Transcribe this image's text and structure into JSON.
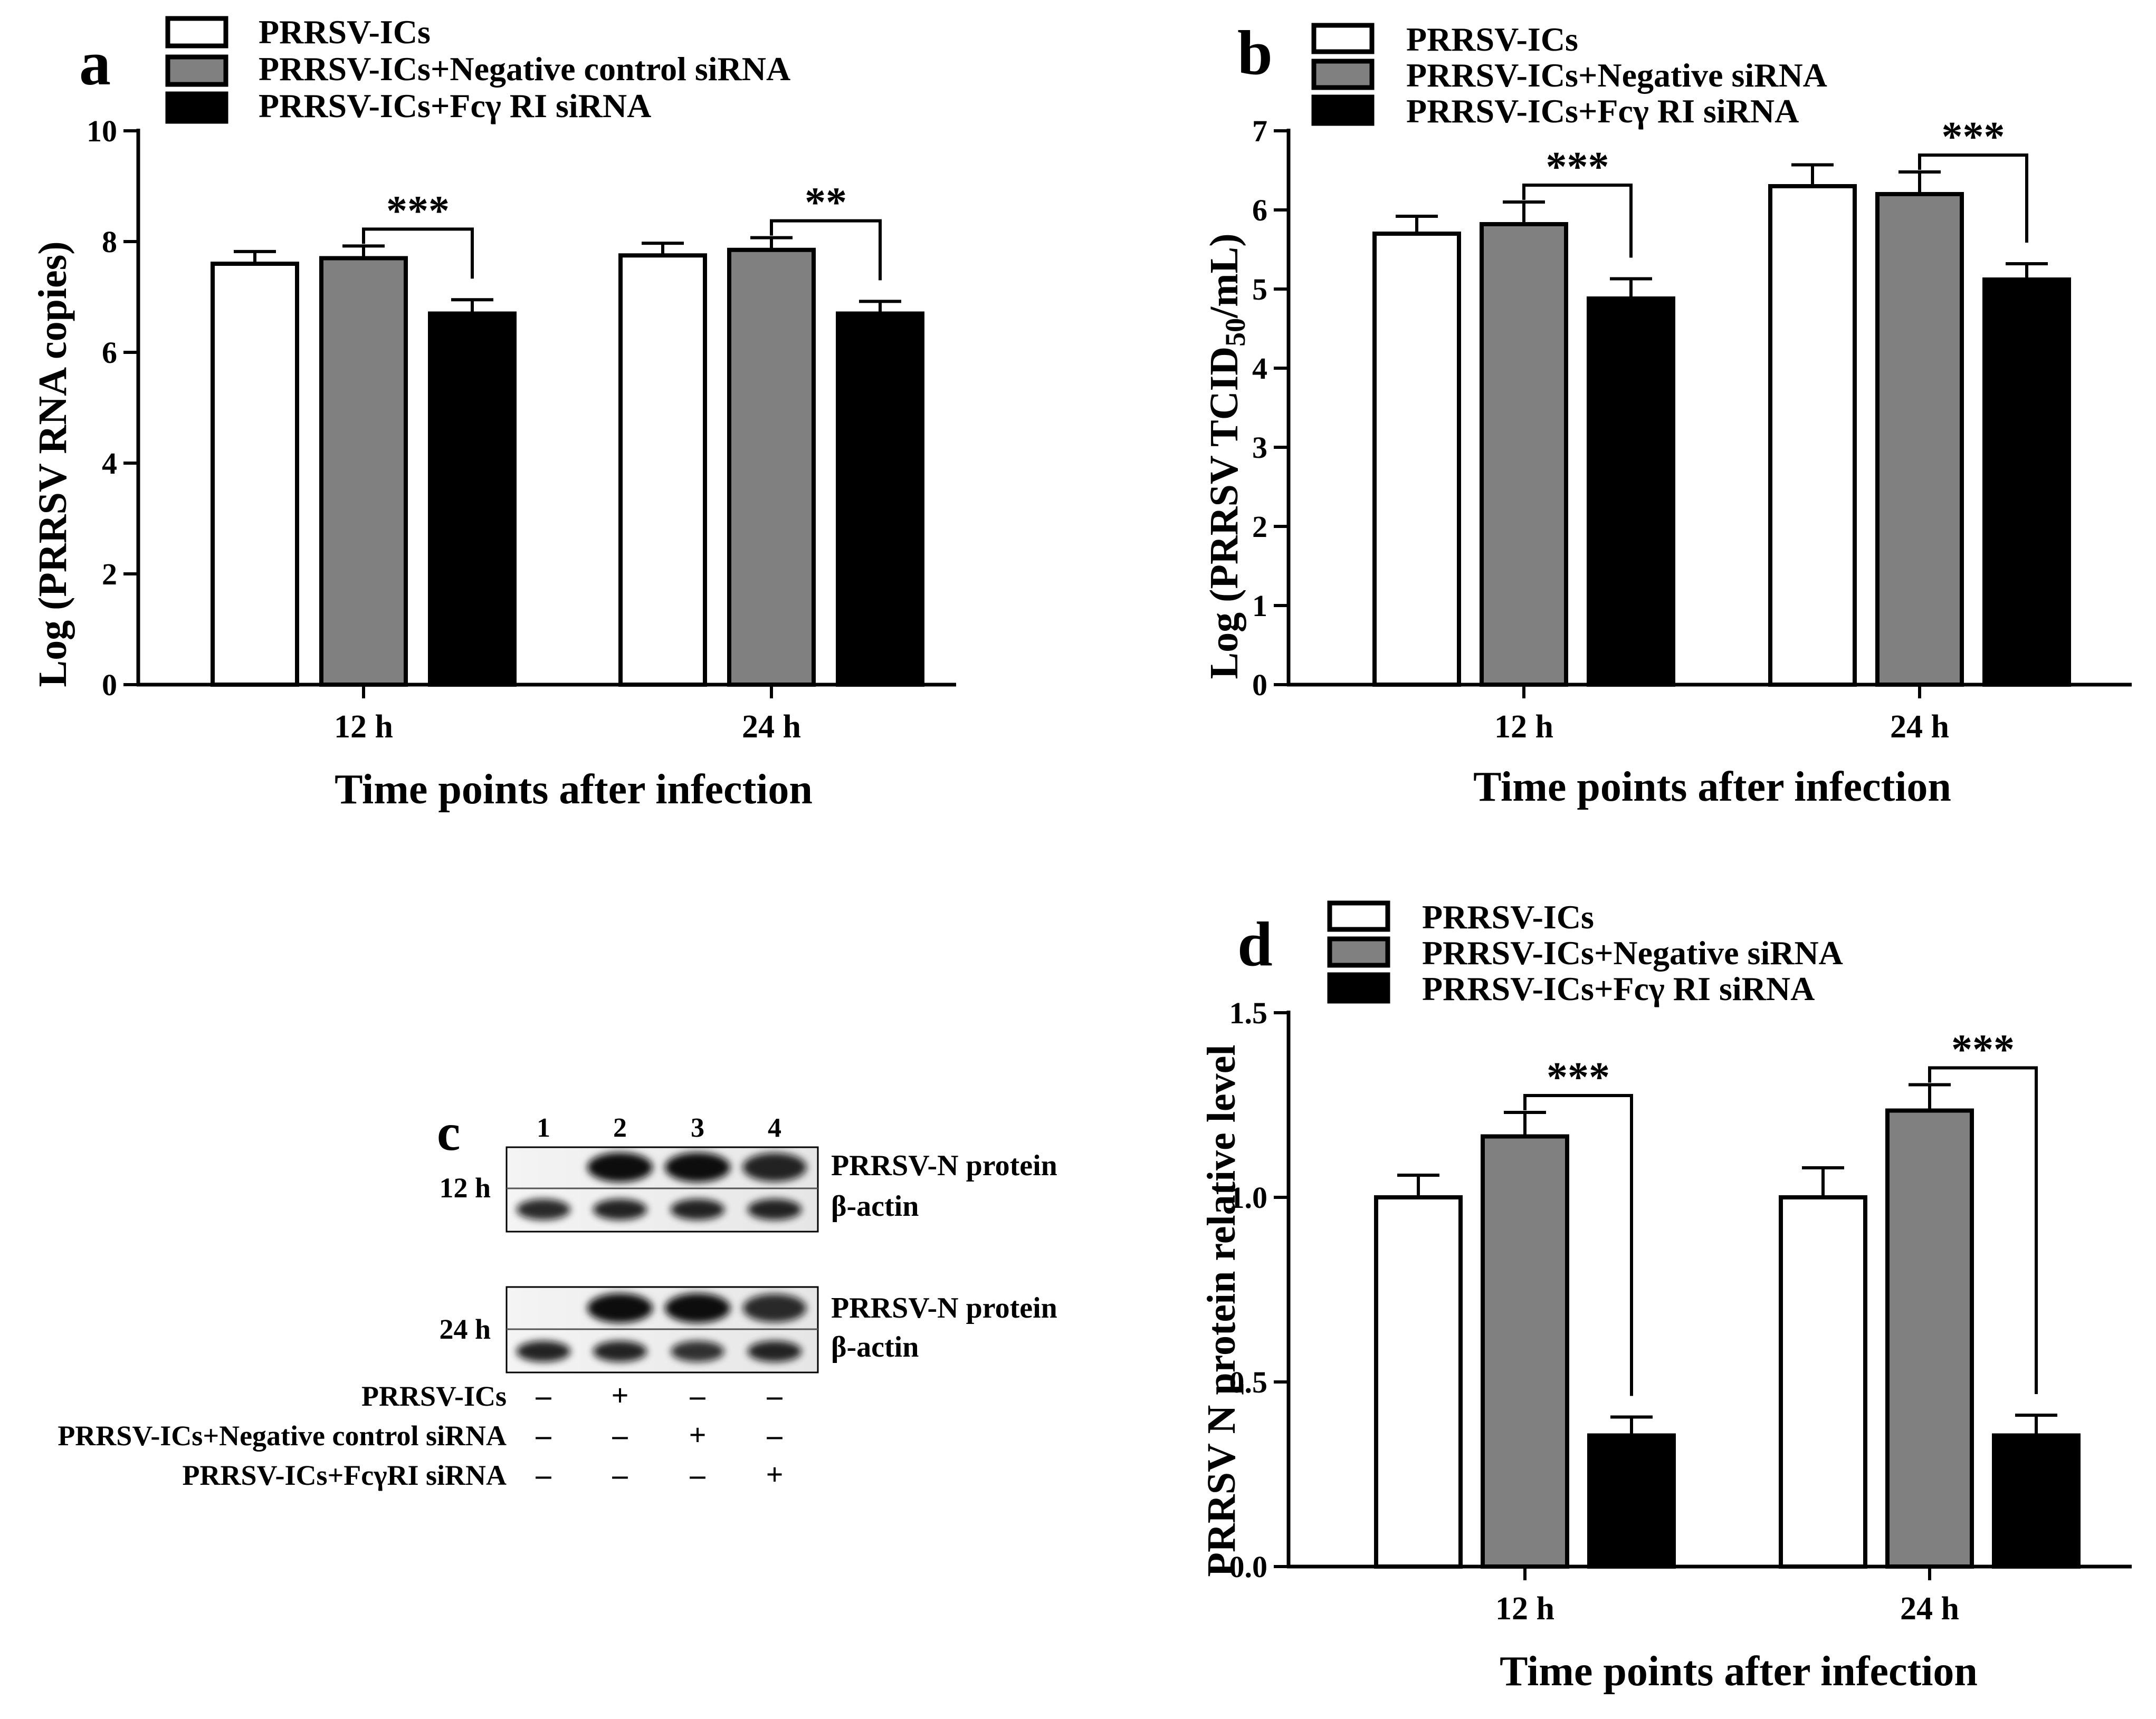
{
  "colors": {
    "white_bar": "#ffffff",
    "gray_bar": "#808080",
    "black_bar": "#000000",
    "axis": "#000000"
  },
  "chart_data": [
    {
      "type": "bar",
      "panel": "a",
      "ylabel": "Log (PRRSV RNA copies)",
      "xlabel": "Time points after infection",
      "categories": [
        "12 h",
        "24 h"
      ],
      "ylim": [
        0,
        10
      ],
      "yticks": [
        0,
        2,
        4,
        6,
        8,
        10
      ],
      "ytick_labels": [
        "0",
        "2",
        "4",
        "6",
        "8",
        "10"
      ],
      "series": [
        {
          "name": "PRRSV-ICs",
          "color": "#ffffff",
          "values": [
            7.6,
            7.75
          ],
          "errors": [
            0.22,
            0.22
          ]
        },
        {
          "name": "PRRSV-ICs+Negative control siRNA",
          "color": "#808080",
          "values": [
            7.7,
            7.85
          ],
          "errors": [
            0.22,
            0.22
          ]
        },
        {
          "name": "PRRSV-ICs+Fcγ  RI siRNA",
          "color": "#000000",
          "values": [
            6.7,
            6.7
          ],
          "errors": [
            0.25,
            0.22
          ]
        }
      ],
      "significance": [
        {
          "category": 0,
          "from_series": 1,
          "to_series": 2,
          "label": "***"
        },
        {
          "category": 1,
          "from_series": 1,
          "to_series": 2,
          "label": "**"
        }
      ]
    },
    {
      "type": "bar",
      "panel": "b",
      "ylabel_prefix": "Log (PRRSV TCID",
      "ylabel_sub": "50",
      "ylabel_suffix": "/mL)",
      "xlabel": "Time points after infection",
      "categories": [
        "12 h",
        "24 h"
      ],
      "ylim": [
        0,
        7
      ],
      "yticks": [
        0,
        1,
        2,
        3,
        4,
        5,
        6,
        7
      ],
      "ytick_labels": [
        "0",
        "1",
        "2",
        "3",
        "4",
        "5",
        "6",
        "7"
      ],
      "series": [
        {
          "name": "PRRSV-ICs",
          "color": "#ffffff",
          "values": [
            5.7,
            6.3
          ],
          "errors": [
            0.22,
            0.27
          ]
        },
        {
          "name": "PRRSV-ICs+Negative siRNA",
          "color": "#808080",
          "values": [
            5.82,
            6.2
          ],
          "errors": [
            0.28,
            0.28
          ]
        },
        {
          "name": "PRRSV-ICs+Fcγ  RI siRNA",
          "color": "#000000",
          "values": [
            4.88,
            5.12
          ],
          "errors": [
            0.25,
            0.2
          ]
        }
      ],
      "significance": [
        {
          "category": 0,
          "from_series": 1,
          "to_series": 2,
          "label": "***"
        },
        {
          "category": 1,
          "from_series": 1,
          "to_series": 2,
          "label": "***"
        }
      ]
    },
    {
      "type": "bar",
      "panel": "d",
      "ylabel": "PRRSV N protein relative level",
      "xlabel": "Time points after infection",
      "categories": [
        "12 h",
        "24 h"
      ],
      "ylim": [
        0,
        1.5
      ],
      "yticks": [
        0,
        0.5,
        1.0,
        1.5
      ],
      "ytick_labels": [
        "0.0",
        "0.5",
        "1.0",
        "1.5"
      ],
      "series": [
        {
          "name": "PRRSV-ICs",
          "color": "#ffffff",
          "values": [
            1.0,
            1.0
          ],
          "errors": [
            0.06,
            0.08
          ]
        },
        {
          "name": "PRRSV-ICs+Negative siRNA",
          "color": "#808080",
          "values": [
            1.165,
            1.235
          ],
          "errors": [
            0.065,
            0.07
          ]
        },
        {
          "name": "PRRSV-ICs+Fcγ  RI siRNA",
          "color": "#000000",
          "values": [
            0.355,
            0.355
          ],
          "errors": [
            0.05,
            0.055
          ]
        }
      ],
      "significance": [
        {
          "category": 0,
          "from_series": 1,
          "to_series": 2,
          "label": "***"
        },
        {
          "category": 1,
          "from_series": 1,
          "to_series": 2,
          "label": "***"
        }
      ]
    }
  ],
  "panel_c": {
    "label": "c",
    "lane_numbers": [
      "1",
      "2",
      "3",
      "4"
    ],
    "blots": [
      {
        "time": "12 h",
        "rows": [
          {
            "label": "PRRSV-N protein",
            "intensity": [
              0,
              1,
              1,
              0.85
            ]
          },
          {
            "label": "β-actin",
            "intensity": [
              0.8,
              0.85,
              0.85,
              0.85
            ]
          }
        ]
      },
      {
        "time": "24 h",
        "rows": [
          {
            "label": "PRRSV-N protein",
            "intensity": [
              0,
              1,
              1,
              0.8
            ]
          },
          {
            "label": "β-actin",
            "intensity": [
              0.85,
              0.85,
              0.75,
              0.85
            ]
          }
        ]
      }
    ],
    "treatments": [
      {
        "label": "PRRSV-ICs",
        "signs": [
          "–",
          "+",
          "–",
          "–"
        ]
      },
      {
        "label": "PRRSV-ICs+Negative control siRNA",
        "signs": [
          "–",
          "–",
          "+",
          "–"
        ]
      },
      {
        "label": "PRRSV-ICs+FcγRI siRNA",
        "signs": [
          "–",
          "–",
          "–",
          "+"
        ]
      }
    ]
  }
}
